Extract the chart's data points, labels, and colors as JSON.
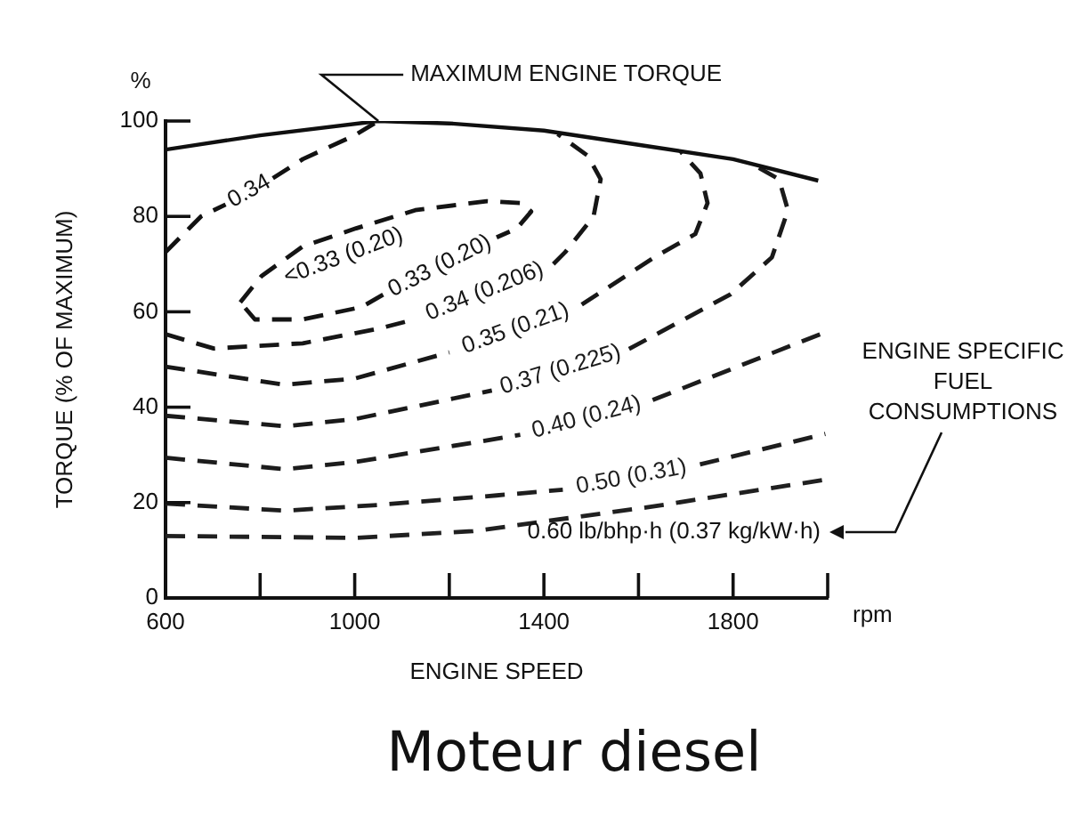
{
  "chart_data": {
    "type": "line",
    "title": "Moteur diesel",
    "xlabel": "ENGINE SPEED",
    "ylabel": "TORQUE (% OF MAXIMUM)",
    "xlim": [
      600,
      2000
    ],
    "ylim": [
      0,
      100
    ],
    "xticks": [
      600,
      {
        "value": 800,
        "label": null
      },
      1000,
      {
        "value": 1200,
        "label": null
      },
      1400,
      {
        "value": 1600,
        "label": null
      },
      1800,
      {
        "value": 2000,
        "label": null
      }
    ],
    "yticks": [
      0,
      20,
      40,
      60,
      80,
      100
    ],
    "grid": false,
    "legend": false,
    "marker": "none",
    "series": [
      {
        "color": "#101010",
        "line_style": "solid",
        "x": [
          600,
          800,
          1050,
          1200,
          1400,
          1600,
          1800,
          1980
        ],
        "values": [
          94,
          97,
          100,
          99.5,
          98,
          95,
          92,
          87.5
        ]
      },
      {
        "name": "0.34",
        "color": "#121212",
        "line_style": "dashed",
        "x": [
          600,
          675,
          727,
          777,
          827,
          890,
          1000,
          1050
        ],
        "values": [
          72.5,
          80,
          82.5,
          null,
          88,
          92,
          97,
          100
        ]
      },
      {
        "name": "0.33 (0.20)",
        "color": "#141414",
        "line_style": "dashed",
        "x": [
          758,
          803,
          890,
          1003,
          1128,
          1279,
          1354,
          1373,
          1343,
          1300,
          1180,
          1060,
          1015,
          890,
          789,
          758
        ],
        "values": [
          62,
          67.5,
          73.7,
          77.5,
          81.3,
          83.2,
          82.8,
          81,
          77.5,
          75.6,
          null,
          63.6,
          61,
          58.4,
          58.4,
          62
        ]
      },
      {
        "name": "0.34 (0.206)",
        "color": "#161616",
        "line_style": "dashed",
        "x": [
          600,
          702,
          890,
          1052,
          1130,
          1279,
          1420,
          1445,
          1505,
          1520,
          1493,
          1429
        ],
        "values": [
          55.3,
          52.3,
          53.4,
          56.5,
          58.5,
          null,
          70,
          72.5,
          80,
          87.8,
          92.7,
          97.3
        ]
      },
      {
        "name": "0.35 (0.21)",
        "color": "#181818",
        "line_style": "dashed",
        "x": [
          600,
          852,
          1000,
          1200,
          1343,
          1480,
          1633,
          1720,
          1746,
          1731,
          1690
        ],
        "values": [
          48.5,
          44.7,
          46,
          51.5,
          null,
          61.5,
          71.4,
          76.3,
          82.8,
          89,
          93.5
        ]
      },
      {
        "name": "0.37 (0.225)",
        "color": "#1a1a1a",
        "line_style": "dashed",
        "x": [
          600,
          852,
          1000,
          1290,
          1437,
          1580,
          1795,
          1882,
          1916,
          1897,
          1844
        ],
        "values": [
          38.2,
          36,
          37.5,
          43.5,
          null,
          52.2,
          63.7,
          71.4,
          81.3,
          87.8,
          90.8
        ]
      },
      {
        "name": "0.40 (0.24)",
        "color": "#1c1c1c",
        "line_style": "dashed",
        "x": [
          600,
          852,
          1000,
          1350,
          1494,
          1630,
          1984
        ],
        "values": [
          29.4,
          27,
          28.5,
          34.2,
          null,
          41.5,
          55.3
        ]
      },
      {
        "name": "0.50 (0.31)",
        "color": "#1e1e1e",
        "line_style": "dashed",
        "x": [
          600,
          852,
          1050,
          1300,
          1440,
          1588,
          1730,
          1995
        ],
        "values": [
          19.8,
          18.3,
          19.5,
          21.5,
          22.7,
          null,
          28,
          34.4
        ]
      },
      {
        "color": "#202020",
        "line_style": "dashed",
        "x": [
          600,
          1000,
          1250,
          1618,
          1995
        ],
        "values": [
          13,
          12.6,
          14,
          19,
          24.8
        ]
      }
    ],
    "annotations": [
      "%",
      "rpm",
      "ENGINE SPECIFIC FUEL CONSUMPTIONS",
      "<0.33 (0.20)",
      "0.60 lb/bhp·h (0.37 kg/kW·h)",
      {
        "text": "MAXIMUM ENGINE TORQUE",
        "x": 1050,
        "y": 100
      }
    ]
  }
}
